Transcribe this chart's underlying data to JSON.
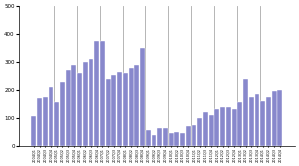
{
  "bar_color": "#8888cc",
  "bar_edgecolor": "#ffffff",
  "background_color": "#ffffff",
  "ylim": [
    0,
    500
  ],
  "yticks": [
    0,
    100,
    200,
    300,
    400,
    500
  ],
  "labels": [
    "2004Q1",
    "2004Q2",
    "2004Q3",
    "2004Q4",
    "2005Q1",
    "2005Q2",
    "2005Q3",
    "2005Q4",
    "2006Q1",
    "2006Q2",
    "2006Q3",
    "2006Q4",
    "2007Q1",
    "2007Q2",
    "2007Q3",
    "2007Q4",
    "2008Q1",
    "2008Q2",
    "2008Q3",
    "2008Q4",
    "2009Q1",
    "2009Q2",
    "2009Q3",
    "2009Q4",
    "2010Q1",
    "2010Q2",
    "2010Q3",
    "2010Q4",
    "2011Q1",
    "2011Q2",
    "2011Q3",
    "2011Q4",
    "2012Q1",
    "2012Q2",
    "2012Q3",
    "2012Q4",
    "2013Q1",
    "2013Q2",
    "2013Q3",
    "2013Q4",
    "2014Q1",
    "2014Q2",
    "2014Q3",
    "2014Q4"
  ],
  "values": [
    105,
    170,
    175,
    210,
    155,
    230,
    270,
    290,
    260,
    300,
    310,
    375,
    375,
    240,
    255,
    265,
    260,
    280,
    290,
    350,
    55,
    40,
    65,
    65,
    45,
    50,
    45,
    70,
    75,
    100,
    120,
    110,
    130,
    140,
    140,
    130,
    155,
    240,
    175,
    185,
    160,
    175,
    195,
    200
  ]
}
